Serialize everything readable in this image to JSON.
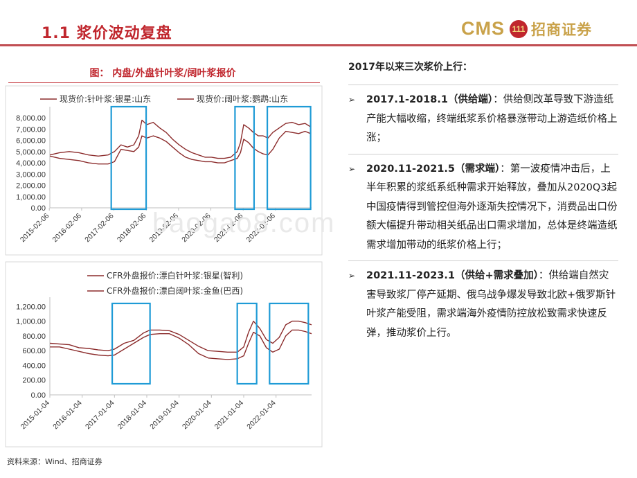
{
  "header": {
    "title": "1.1 浆价波动复盘",
    "logo_text": "CMS",
    "logo_mark": "111",
    "logo_cn": "招商证券"
  },
  "figure": {
    "title": "图： 内盘/外盘针叶浆/阔叶浆报价",
    "source": "资料来源：Wind、招商证券",
    "watermark": "baogao8.com"
  },
  "colors": {
    "accent": "#c0262d",
    "series": "#8b2b2b",
    "highlight": "#1f9bd6"
  },
  "chart_data": [
    {
      "type": "line",
      "title": "",
      "legend": [
        "现货价:针叶浆:银星:山东",
        "现货价:阔叶浆:鹦鹉:山东"
      ],
      "x_ticks": [
        "2015-02-06",
        "2016-02-06",
        "2017-02-06",
        "2018-02-06",
        "2019-02-06",
        "2020-02-06",
        "2021-02-06",
        "2022-02-06"
      ],
      "y_ticks": [
        "0.00",
        "1,000.00",
        "2,000.00",
        "3,000.00",
        "4,000.00",
        "5,000.00",
        "6,000.00",
        "7,000.00",
        "8,000.00"
      ],
      "ylim": [
        0,
        8500
      ],
      "xlim": [
        2015.1,
        2023.2
      ],
      "highlight_ranges": [
        [
          2017.0,
          2018.08
        ],
        [
          2020.83,
          2021.42
        ],
        [
          2021.83,
          2023.17
        ]
      ],
      "series": [
        {
          "name": "现货价:针叶浆:银星:山东",
          "x": [
            2015.1,
            2015.4,
            2015.7,
            2016.0,
            2016.3,
            2016.6,
            2016.9,
            2017.1,
            2017.3,
            2017.5,
            2017.7,
            2017.85,
            2017.95,
            2018.1,
            2018.3,
            2018.5,
            2018.7,
            2018.9,
            2019.1,
            2019.3,
            2019.5,
            2019.7,
            2019.9,
            2020.1,
            2020.3,
            2020.5,
            2020.7,
            2020.9,
            2021.0,
            2021.1,
            2021.25,
            2021.4,
            2021.55,
            2021.7,
            2021.85,
            2022.0,
            2022.2,
            2022.4,
            2022.6,
            2022.8,
            2023.0,
            2023.17
          ],
          "values": [
            4700,
            4900,
            5000,
            4900,
            4700,
            4600,
            4700,
            5000,
            5600,
            5400,
            5600,
            6400,
            7800,
            7400,
            7600,
            7100,
            6700,
            6100,
            5600,
            5200,
            4900,
            4700,
            4500,
            4500,
            4400,
            4400,
            4500,
            5000,
            5800,
            7400,
            7100,
            6700,
            6400,
            6400,
            6200,
            6700,
            7100,
            7500,
            7600,
            7400,
            7500,
            7200
          ]
        },
        {
          "name": "现货价:阔叶浆:鹦鹉:山东",
          "x": [
            2015.1,
            2015.4,
            2015.7,
            2016.0,
            2016.3,
            2016.6,
            2016.9,
            2017.1,
            2017.3,
            2017.5,
            2017.7,
            2017.85,
            2017.95,
            2018.1,
            2018.3,
            2018.5,
            2018.7,
            2018.9,
            2019.1,
            2019.3,
            2019.5,
            2019.7,
            2019.9,
            2020.1,
            2020.3,
            2020.5,
            2020.7,
            2020.9,
            2021.0,
            2021.1,
            2021.25,
            2021.4,
            2021.55,
            2021.7,
            2021.85,
            2022.0,
            2022.2,
            2022.4,
            2022.6,
            2022.8,
            2023.0,
            2023.17
          ],
          "values": [
            4600,
            4400,
            4300,
            4200,
            4000,
            3900,
            3900,
            4100,
            5200,
            5100,
            5000,
            5400,
            6400,
            6200,
            6400,
            6200,
            5900,
            5400,
            4900,
            4500,
            4300,
            4200,
            4100,
            4100,
            4000,
            4000,
            4200,
            4400,
            4900,
            6100,
            5800,
            5300,
            5000,
            4800,
            4700,
            5200,
            6200,
            6800,
            6700,
            6600,
            6800,
            6600
          ]
        }
      ]
    },
    {
      "type": "line",
      "title": "",
      "legend": [
        "CFR外盘报价:漂白针叶浆:银星(智利)",
        "CFR外盘报价:漂白阔叶浆:金鱼(巴西)"
      ],
      "x_ticks": [
        "2015-01-04",
        "2016-01-04",
        "2017-01-04",
        "2018-01-04",
        "2019-01-04",
        "2020-01-04",
        "2021-01-04",
        "2022-01-04"
      ],
      "y_ticks": [
        "0.00",
        "200.00",
        "400.00",
        "600.00",
        "800.00",
        "1,000.00",
        "1,200.00"
      ],
      "ylim": [
        0,
        1250
      ],
      "xlim": [
        2015.0,
        2023.1
      ],
      "highlight_ranges": [
        [
          2016.93,
          2018.1
        ],
        [
          2020.8,
          2021.4
        ],
        [
          2021.8,
          2023.0
        ]
      ],
      "series": [
        {
          "name": "CFR外盘报价:漂白针叶浆:银星(智利)",
          "x": [
            2015.0,
            2015.3,
            2015.6,
            2015.9,
            2016.2,
            2016.5,
            2016.8,
            2017.0,
            2017.3,
            2017.6,
            2017.9,
            2018.1,
            2018.4,
            2018.7,
            2019.0,
            2019.3,
            2019.6,
            2019.9,
            2020.2,
            2020.5,
            2020.8,
            2021.0,
            2021.15,
            2021.3,
            2021.5,
            2021.7,
            2021.9,
            2022.1,
            2022.3,
            2022.5,
            2022.7,
            2022.9,
            2023.1
          ],
          "values": [
            700,
            690,
            680,
            640,
            630,
            610,
            600,
            620,
            700,
            740,
            840,
            880,
            880,
            870,
            820,
            740,
            660,
            600,
            590,
            580,
            580,
            650,
            850,
            1000,
            900,
            750,
            700,
            780,
            950,
            1000,
            1000,
            980,
            950
          ]
        },
        {
          "name": "CFR外盘报价:漂白阔叶浆:金鱼(巴西)",
          "x": [
            2015.0,
            2015.3,
            2015.6,
            2015.9,
            2016.2,
            2016.5,
            2016.8,
            2017.0,
            2017.3,
            2017.6,
            2017.9,
            2018.1,
            2018.4,
            2018.7,
            2019.0,
            2019.3,
            2019.6,
            2019.9,
            2020.2,
            2020.5,
            2020.8,
            2021.0,
            2021.15,
            2021.3,
            2021.5,
            2021.7,
            2021.9,
            2022.1,
            2022.3,
            2022.5,
            2022.7,
            2022.9,
            2023.1
          ],
          "values": [
            650,
            650,
            620,
            590,
            560,
            540,
            530,
            540,
            620,
            700,
            780,
            820,
            830,
            830,
            770,
            680,
            560,
            500,
            490,
            480,
            490,
            530,
            700,
            850,
            800,
            640,
            580,
            620,
            800,
            880,
            880,
            860,
            830
          ]
        }
      ]
    }
  ],
  "right_panel": {
    "title": "2017年以来三次浆价上行：",
    "items": [
      {
        "bullet": "➢",
        "head": "2017.1-2018.1（供给端）",
        "text": "：供给侧改革导致下游造纸产能大幅收缩，终端纸浆系价格暴涨带动上游造纸价格上涨；"
      },
      {
        "bullet": "➢",
        "head": "2020.11-2021.5（需求端）",
        "text": "：第一波疫情冲击后，上半年积累的浆纸系纸种需求开始释放，叠加从2020Q3起中国疫情得到管控但海外逐渐失控情况下，消费品出口份额大幅提升带动相关纸品出口需求增加，总体是终端造纸需求增加带动的纸浆价格上行；"
      },
      {
        "bullet": "➢",
        "head": "2021.11-2023.1（供给+需求叠加）",
        "text": "：供给端自然灾害导致浆厂停产延期、俄乌战争爆发导致北欧+俄罗斯针叶浆产能受阻，需求端海外疫情防控放松致需求快速反弹，推动浆价上行。"
      }
    ]
  }
}
